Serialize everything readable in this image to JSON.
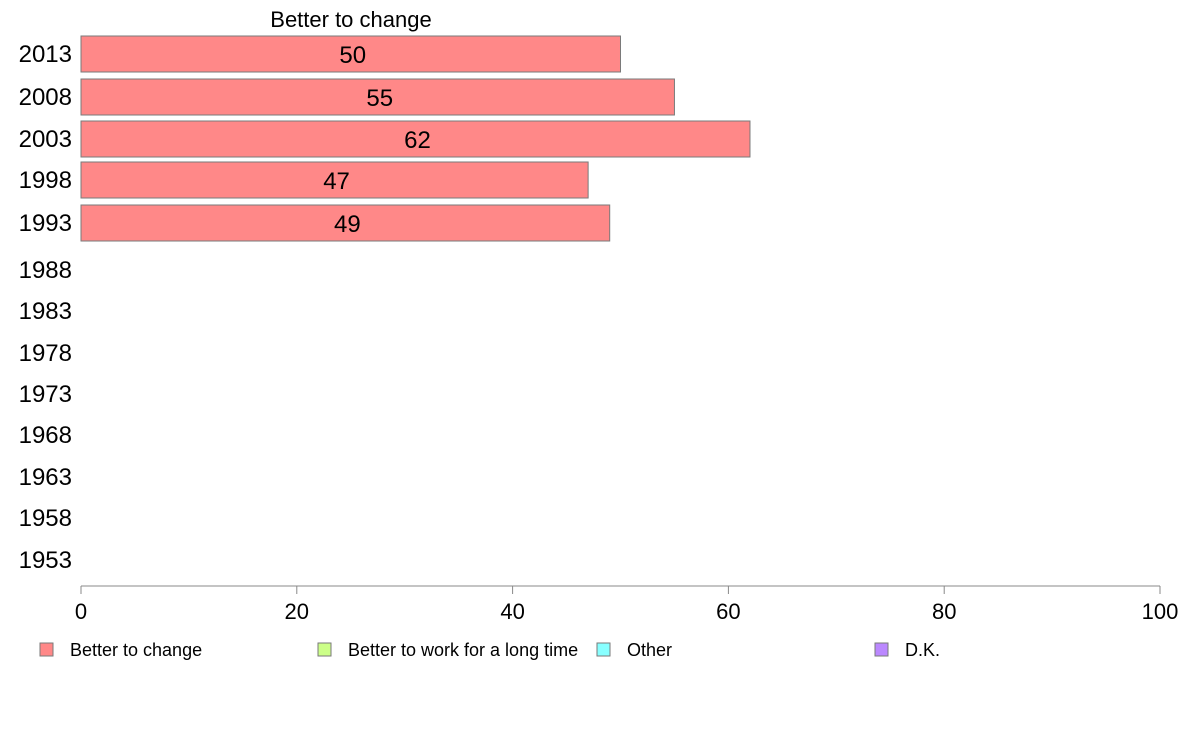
{
  "chart_data": {
    "type": "bar",
    "orientation": "horizontal",
    "title": "Better to change",
    "categories": [
      "2013",
      "2008",
      "2003",
      "1998",
      "1993",
      "1988",
      "1983",
      "1978",
      "1973",
      "1968",
      "1963",
      "1958",
      "1953"
    ],
    "series": [
      {
        "name": "Better to change",
        "color": "#ff8888",
        "values": [
          50,
          55,
          62,
          47,
          49,
          null,
          null,
          null,
          null,
          null,
          null,
          null,
          null
        ]
      }
    ],
    "xlim": [
      0,
      100
    ],
    "xticks": [
      0,
      20,
      40,
      60,
      80,
      100
    ],
    "grid": false,
    "legend": {
      "position": "bottom",
      "entries": [
        {
          "label": "Better to change",
          "color": "#ff8888"
        },
        {
          "label": "Better to work for a long time",
          "color": "#ccff88"
        },
        {
          "label": "Other",
          "color": "#88ffff"
        },
        {
          "label": "D.K.",
          "color": "#bb88ff"
        }
      ]
    }
  }
}
